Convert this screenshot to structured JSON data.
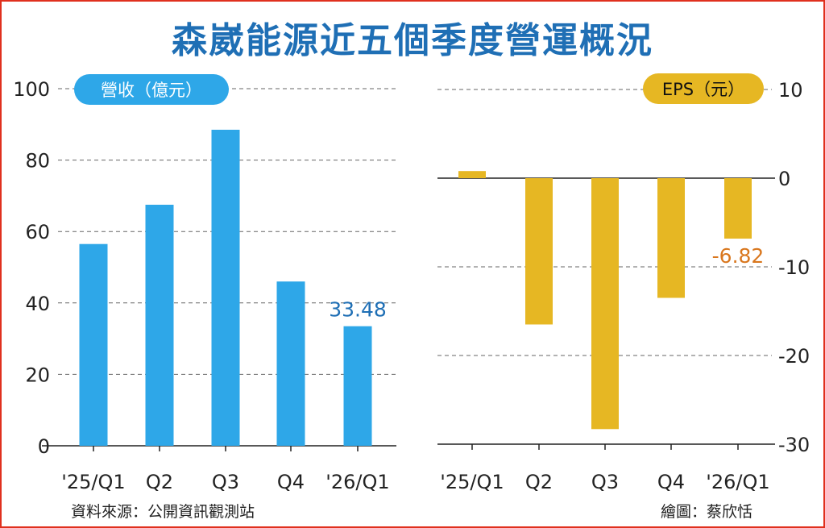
{
  "title": "森崴能源近五個季度營運概況",
  "source": "資料來源：公開資訊觀測站",
  "credit": "繪圖：蔡欣恬",
  "colors": {
    "revenue": "#2ea7e8",
    "eps": "#e6b723",
    "eps_label": "#d9771e",
    "title": "#1f6fb5"
  },
  "chart_data": [
    {
      "type": "bar",
      "badge": "營收（億元）",
      "categories": [
        "'25/Q1",
        "Q2",
        "Q3",
        "Q4",
        "'26/Q1"
      ],
      "values": [
        56.5,
        67.5,
        88.5,
        46.0,
        33.48
      ],
      "ylim": [
        0,
        100
      ],
      "yticks": [
        "100",
        "80",
        "60",
        "40",
        "20",
        "0"
      ],
      "data_labels": [
        {
          "index": 4,
          "text": "33.48"
        }
      ],
      "grid": true
    },
    {
      "type": "bar",
      "badge": "EPS（元）",
      "categories": [
        "'25/Q1",
        "Q2",
        "Q3",
        "Q4",
        "'26/Q1"
      ],
      "values": [
        0.8,
        -16.5,
        -28.3,
        -13.5,
        -6.82
      ],
      "ylim": [
        -30,
        10
      ],
      "yticks": [
        "10",
        "0",
        "-10",
        "-20",
        "-30"
      ],
      "data_labels": [
        {
          "index": 4,
          "text": "-6.82"
        }
      ],
      "grid": true
    }
  ]
}
